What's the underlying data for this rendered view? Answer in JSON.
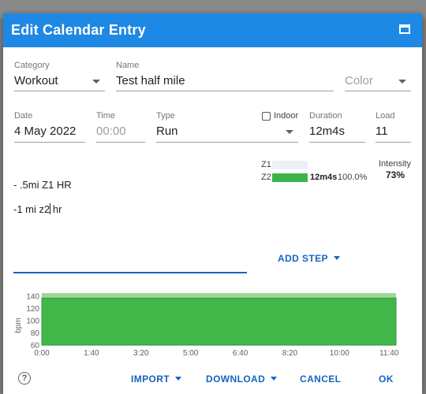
{
  "window": {
    "title": "Edit Calendar Entry"
  },
  "form": {
    "category": {
      "label": "Category",
      "value": "Workout"
    },
    "name": {
      "label": "Name",
      "value": "Test half mile"
    },
    "color": {
      "placeholder": "Color"
    },
    "date": {
      "label": "Date",
      "value": "4 May 2022"
    },
    "time": {
      "label": "Time",
      "placeholder": "00:00"
    },
    "type": {
      "label": "Type",
      "value": "Run"
    },
    "indoor": {
      "label": "Indoor",
      "checked": false
    },
    "duration": {
      "label": "Duration",
      "value": "12m4s"
    },
    "load": {
      "label": "Load",
      "value": "11"
    }
  },
  "zones": [
    {
      "label": "Z1",
      "fraction": 0.0,
      "time": "",
      "percent": ""
    },
    {
      "label": "Z2",
      "fraction": 1.0,
      "time": "12m4s",
      "percent": "100.0%"
    }
  ],
  "intensity": {
    "label": "Intensity",
    "value": "73%"
  },
  "description": {
    "lines": [
      "- .5mi Z1 HR",
      "-1 mi z2 hr"
    ]
  },
  "buttons": {
    "add_step": "ADD STEP",
    "import": "IMPORT",
    "download": "DOWNLOAD",
    "cancel": "CANCEL",
    "ok": "OK",
    "help": "?"
  },
  "colors": {
    "accent": "#1e88e5",
    "zone_fill": "#3bb54a",
    "chart_fill": "#43b649",
    "chart_band": "#9fd79a"
  },
  "chart_data": {
    "type": "area",
    "ylabel": "bpm",
    "xlabel": "",
    "title": "",
    "ylim": [
      60,
      145
    ],
    "yticks": [
      60,
      80,
      100,
      120,
      140
    ],
    "xlim": [
      0,
      11.9
    ],
    "xticks": [
      "0:00",
      "1:40",
      "3:20",
      "5:00",
      "6:40",
      "8:20",
      "10:00",
      "11:40"
    ],
    "xtick_minutes": [
      0,
      1.6667,
      3.3333,
      5,
      6.6667,
      8.3333,
      10,
      11.6667
    ],
    "series": [
      {
        "x": [
          0,
          11.9
        ],
        "y": [
          137,
          137
        ]
      }
    ],
    "band": {
      "low": 137,
      "high": 145
    }
  }
}
